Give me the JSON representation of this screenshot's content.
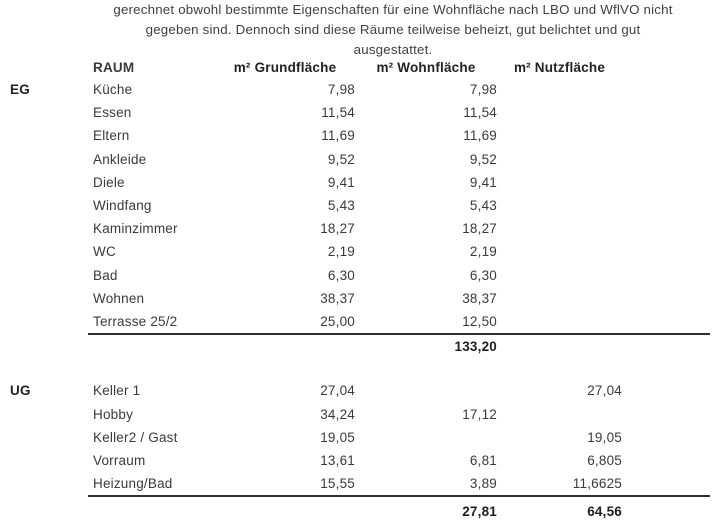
{
  "page": {
    "intro_lines": [
      "gerechnet obwohl bestimmte Eigenschaften für eine Wohnfläche nach LBO und WflVO nicht",
      "gegeben sind. Dennoch sind diese Räume teilweise beheizt, gut belichtet und gut",
      "ausgestattet."
    ]
  },
  "table": {
    "columns": [
      "RAUM",
      "m² Grundfläche",
      "m² Wohnfläche",
      "m² Nutzfläche"
    ],
    "sections": [
      {
        "floor_label": "EG",
        "rows": [
          {
            "name": "Küche",
            "grund": "7,98",
            "wohn": "7,98",
            "nutz": ""
          },
          {
            "name": "Essen",
            "grund": "11,54",
            "wohn": "11,54",
            "nutz": ""
          },
          {
            "name": "Eltern",
            "grund": "11,69",
            "wohn": "11,69",
            "nutz": ""
          },
          {
            "name": "Ankleide",
            "grund": "9,52",
            "wohn": "9,52",
            "nutz": ""
          },
          {
            "name": "Diele",
            "grund": "9,41",
            "wohn": "9,41",
            "nutz": ""
          },
          {
            "name": "Windfang",
            "grund": "5,43",
            "wohn": "5,43",
            "nutz": ""
          },
          {
            "name": "Kaminzimmer",
            "grund": "18,27",
            "wohn": "18,27",
            "nutz": ""
          },
          {
            "name": "WC",
            "grund": "2,19",
            "wohn": "2,19",
            "nutz": ""
          },
          {
            "name": "Bad",
            "grund": "6,30",
            "wohn": "6,30",
            "nutz": ""
          },
          {
            "name": "Wohnen",
            "grund": "38,37",
            "wohn": "38,37",
            "nutz": ""
          },
          {
            "name": "Terrasse 25/2",
            "grund": "25,00",
            "wohn": "12,50",
            "nutz": ""
          }
        ],
        "total": {
          "grund": "",
          "wohn": "133,20",
          "nutz": ""
        }
      },
      {
        "floor_label": "UG",
        "rows": [
          {
            "name": "Keller 1",
            "grund": "27,04",
            "wohn": "",
            "nutz": "27,04"
          },
          {
            "name": "Hobby",
            "grund": "34,24",
            "wohn": "17,12",
            "nutz": ""
          },
          {
            "name": "Keller2 / Gast",
            "grund": "19,05",
            "wohn": "",
            "nutz": "19,05"
          },
          {
            "name": "Vorraum",
            "grund": "13,61",
            "wohn": "6,81",
            "nutz": "6,805"
          },
          {
            "name": "Heizung/Bad",
            "grund": "15,55",
            "wohn": "3,89",
            "nutz": "11,6625"
          }
        ],
        "total": {
          "grund": "",
          "wohn": "27,81",
          "nutz": "64,56"
        }
      }
    ]
  }
}
